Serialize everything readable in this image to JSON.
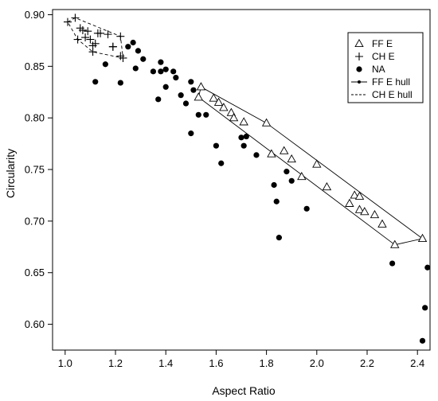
{
  "chart_data": {
    "type": "scatter",
    "xlabel": "Aspect Ratio",
    "ylabel": "Circularity",
    "xlim": [
      0.95,
      2.45
    ],
    "ylim": [
      0.575,
      0.905
    ],
    "xticks": [
      "1.0",
      "1.2",
      "1.4",
      "1.6",
      "1.8",
      "2.0",
      "2.2",
      "2.4"
    ],
    "yticks": [
      "0.60",
      "0.65",
      "0.70",
      "0.75",
      "0.80",
      "0.85",
      "0.90"
    ],
    "grid": false,
    "legend_position": "top-right",
    "legend": [
      {
        "label": "FF E",
        "symbol": "triangle"
      },
      {
        "label": "CH E",
        "symbol": "plus"
      },
      {
        "label": "NA",
        "symbol": "dot"
      },
      {
        "label": "FF E hull",
        "symbol": "solid-line-dot"
      },
      {
        "label": "CH E hull",
        "symbol": "dashed-line"
      }
    ],
    "series": [
      {
        "name": "FF E",
        "marker": "triangle",
        "points": [
          [
            1.54,
            0.83
          ],
          [
            1.53,
            0.82
          ],
          [
            1.59,
            0.819
          ],
          [
            1.61,
            0.815
          ],
          [
            1.63,
            0.81
          ],
          [
            1.66,
            0.805
          ],
          [
            1.67,
            0.8
          ],
          [
            1.71,
            0.796
          ],
          [
            1.8,
            0.795
          ],
          [
            1.82,
            0.765
          ],
          [
            1.87,
            0.768
          ],
          [
            1.9,
            0.76
          ],
          [
            1.94,
            0.743
          ],
          [
            2.0,
            0.755
          ],
          [
            2.04,
            0.733
          ],
          [
            2.13,
            0.717
          ],
          [
            2.15,
            0.725
          ],
          [
            2.17,
            0.724
          ],
          [
            2.17,
            0.711
          ],
          [
            2.19,
            0.709
          ],
          [
            2.23,
            0.706
          ],
          [
            2.26,
            0.697
          ],
          [
            2.31,
            0.677
          ],
          [
            2.42,
            0.683
          ]
        ]
      },
      {
        "name": "CH E",
        "marker": "plus",
        "points": [
          [
            1.01,
            0.893
          ],
          [
            1.04,
            0.897
          ],
          [
            1.05,
            0.876
          ],
          [
            1.06,
            0.887
          ],
          [
            1.07,
            0.885
          ],
          [
            1.08,
            0.878
          ],
          [
            1.09,
            0.884
          ],
          [
            1.1,
            0.876
          ],
          [
            1.11,
            0.87
          ],
          [
            1.12,
            0.872
          ],
          [
            1.11,
            0.864
          ],
          [
            1.13,
            0.882
          ],
          [
            1.14,
            0.882
          ],
          [
            1.17,
            0.881
          ],
          [
            1.19,
            0.869
          ],
          [
            1.19,
            0.869
          ],
          [
            1.22,
            0.879
          ],
          [
            1.22,
            0.86
          ],
          [
            1.23,
            0.858
          ]
        ]
      },
      {
        "name": "NA",
        "marker": "dot",
        "points": [
          [
            1.12,
            0.835
          ],
          [
            1.16,
            0.852
          ],
          [
            1.22,
            0.834
          ],
          [
            1.25,
            0.869
          ],
          [
            1.27,
            0.873
          ],
          [
            1.28,
            0.848
          ],
          [
            1.29,
            0.865
          ],
          [
            1.31,
            0.857
          ],
          [
            1.35,
            0.845
          ],
          [
            1.38,
            0.854
          ],
          [
            1.38,
            0.845
          ],
          [
            1.4,
            0.847
          ],
          [
            1.37,
            0.818
          ],
          [
            1.4,
            0.83
          ],
          [
            1.43,
            0.845
          ],
          [
            1.44,
            0.839
          ],
          [
            1.46,
            0.822
          ],
          [
            1.48,
            0.814
          ],
          [
            1.5,
            0.835
          ],
          [
            1.51,
            0.827
          ],
          [
            1.5,
            0.785
          ],
          [
            1.53,
            0.803
          ],
          [
            1.56,
            0.803
          ],
          [
            1.6,
            0.773
          ],
          [
            1.62,
            0.756
          ],
          [
            1.7,
            0.781
          ],
          [
            1.71,
            0.773
          ],
          [
            1.72,
            0.782
          ],
          [
            1.76,
            0.764
          ],
          [
            1.83,
            0.735
          ],
          [
            1.84,
            0.719
          ],
          [
            1.85,
            0.684
          ],
          [
            1.88,
            0.748
          ],
          [
            1.9,
            0.739
          ],
          [
            1.96,
            0.712
          ],
          [
            2.3,
            0.659
          ],
          [
            2.42,
            0.584
          ],
          [
            2.44,
            0.655
          ],
          [
            2.43,
            0.616
          ]
        ]
      }
    ],
    "hulls": [
      {
        "name": "FF E hull",
        "style": "solid",
        "points": [
          [
            1.54,
            0.83
          ],
          [
            1.8,
            0.795
          ],
          [
            2.42,
            0.683
          ],
          [
            2.31,
            0.677
          ],
          [
            1.53,
            0.82
          ]
        ]
      },
      {
        "name": "CH E hull",
        "style": "dashed",
        "points": [
          [
            1.01,
            0.893
          ],
          [
            1.04,
            0.897
          ],
          [
            1.22,
            0.879
          ],
          [
            1.23,
            0.858
          ],
          [
            1.11,
            0.864
          ],
          [
            1.05,
            0.876
          ]
        ]
      }
    ]
  }
}
